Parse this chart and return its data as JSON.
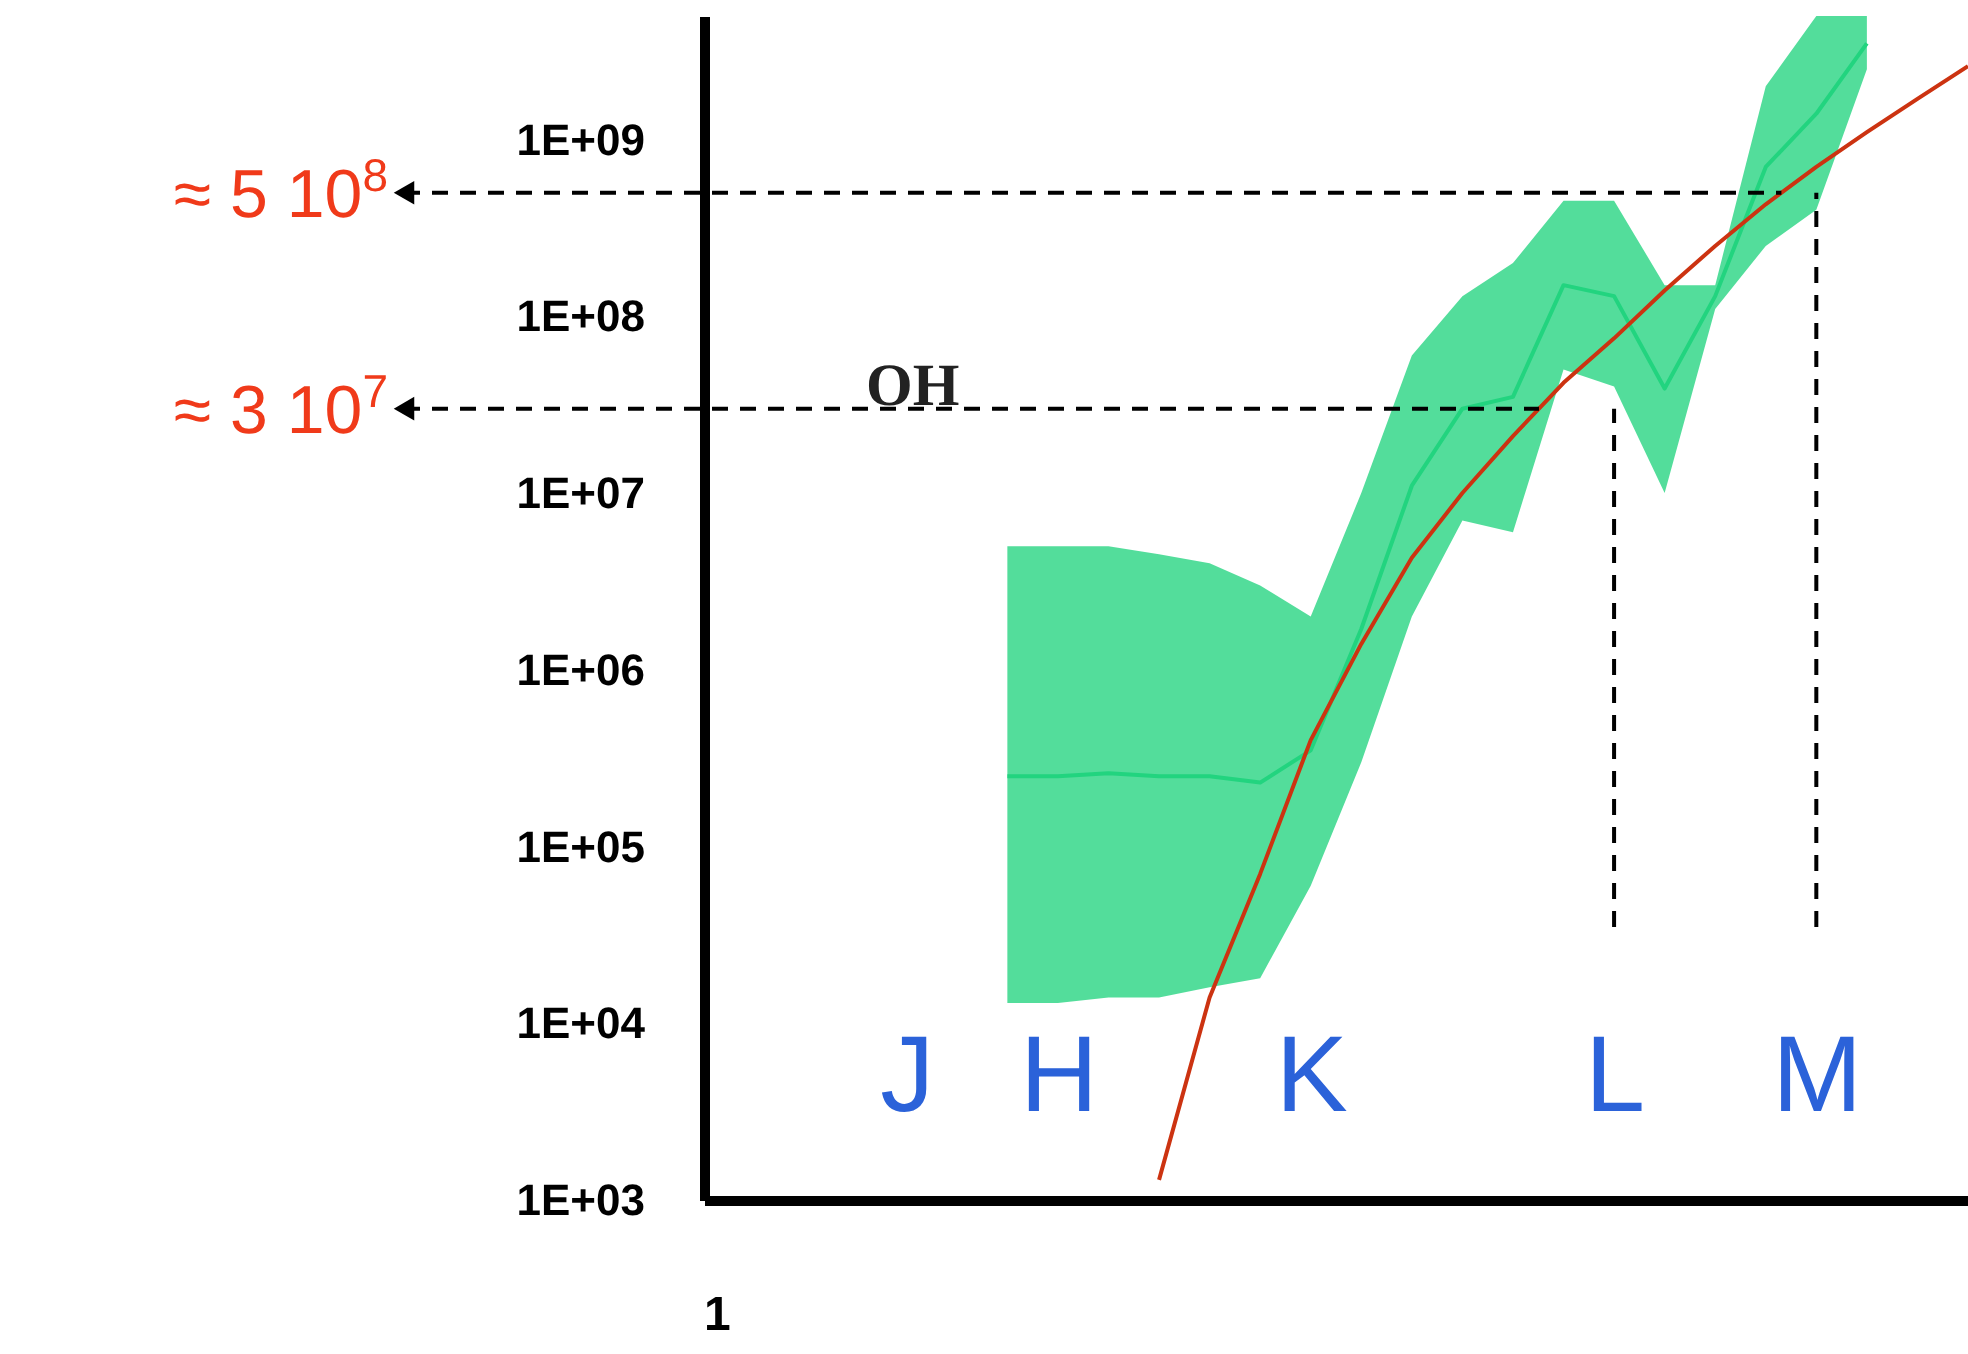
{
  "chart_data": {
    "type": "line",
    "log": "y",
    "ylim": [
      1000,
      5000000000
    ],
    "yticks": [
      {
        "value": 1000,
        "label": "1E+03"
      },
      {
        "value": 10000,
        "label": "1E+04"
      },
      {
        "value": 100000,
        "label": "1E+05"
      },
      {
        "value": 1000000,
        "label": "1E+06"
      },
      {
        "value": 10000000,
        "label": "1E+07"
      },
      {
        "value": 100000000,
        "label": "1E+08"
      },
      {
        "value": 1000000000,
        "label": "1E+09"
      }
    ],
    "categories": [
      null,
      null,
      null,
      null,
      "J",
      null,
      null,
      "H",
      null,
      null,
      null,
      null,
      "K",
      null,
      null,
      null,
      null,
      null,
      "L",
      null,
      null,
      null,
      "M",
      null,
      null,
      null
    ],
    "series": [
      {
        "type": "line",
        "color": "#22d47f",
        "values": [
          null,
          null,
          null,
          null,
          null,
          null,
          250000,
          250000,
          260000,
          250000,
          250000,
          230000,
          350000,
          1700000,
          11000000,
          30000000,
          35000000,
          150000000,
          130000000,
          39000000,
          130000000,
          700000000,
          1400000000,
          3500000000,
          null,
          null
        ],
        "upper": [
          null,
          null,
          null,
          null,
          null,
          null,
          5000000,
          5000000,
          5000000,
          4500000,
          4000000,
          3000000,
          2000000,
          10000000,
          60000000,
          130000000,
          200000000,
          450000000,
          450000000,
          150000000,
          150000000,
          2000000000,
          5000000000,
          5000000000,
          null,
          null
        ],
        "lower": [
          null,
          null,
          null,
          null,
          null,
          null,
          13000,
          13000,
          14000,
          14000,
          16000,
          18000,
          60000,
          300000,
          2000000,
          7000000,
          6000000,
          50000000,
          40000000,
          10000000,
          110000000,
          250000000,
          400000000,
          2500000000,
          null,
          null
        ]
      },
      {
        "type": "line",
        "color": "#cc3311",
        "values": [
          null,
          null,
          null,
          null,
          null,
          null,
          null,
          null,
          null,
          1300,
          14000,
          70000,
          400000,
          1400000,
          4300000,
          10000000,
          21000000,
          42000000,
          75000000,
          140000000,
          250000000,
          430000000,
          700000000,
          1100000000,
          1700000000,
          2600000000
        ]
      }
    ],
    "ref_lines": [
      {
        "axis": "y",
        "value": 500000000,
        "label": "≈ 5 10$^{8}$",
        "color": "#000000",
        "line_style": "dashed"
      },
      {
        "axis": "y",
        "value": 30000000,
        "label": "≈ 3 10$^{7}$",
        "color": "#000000",
        "line_style": "dashed"
      }
    ],
    "annotations": [
      "1",
      "OH"
    ]
  }
}
